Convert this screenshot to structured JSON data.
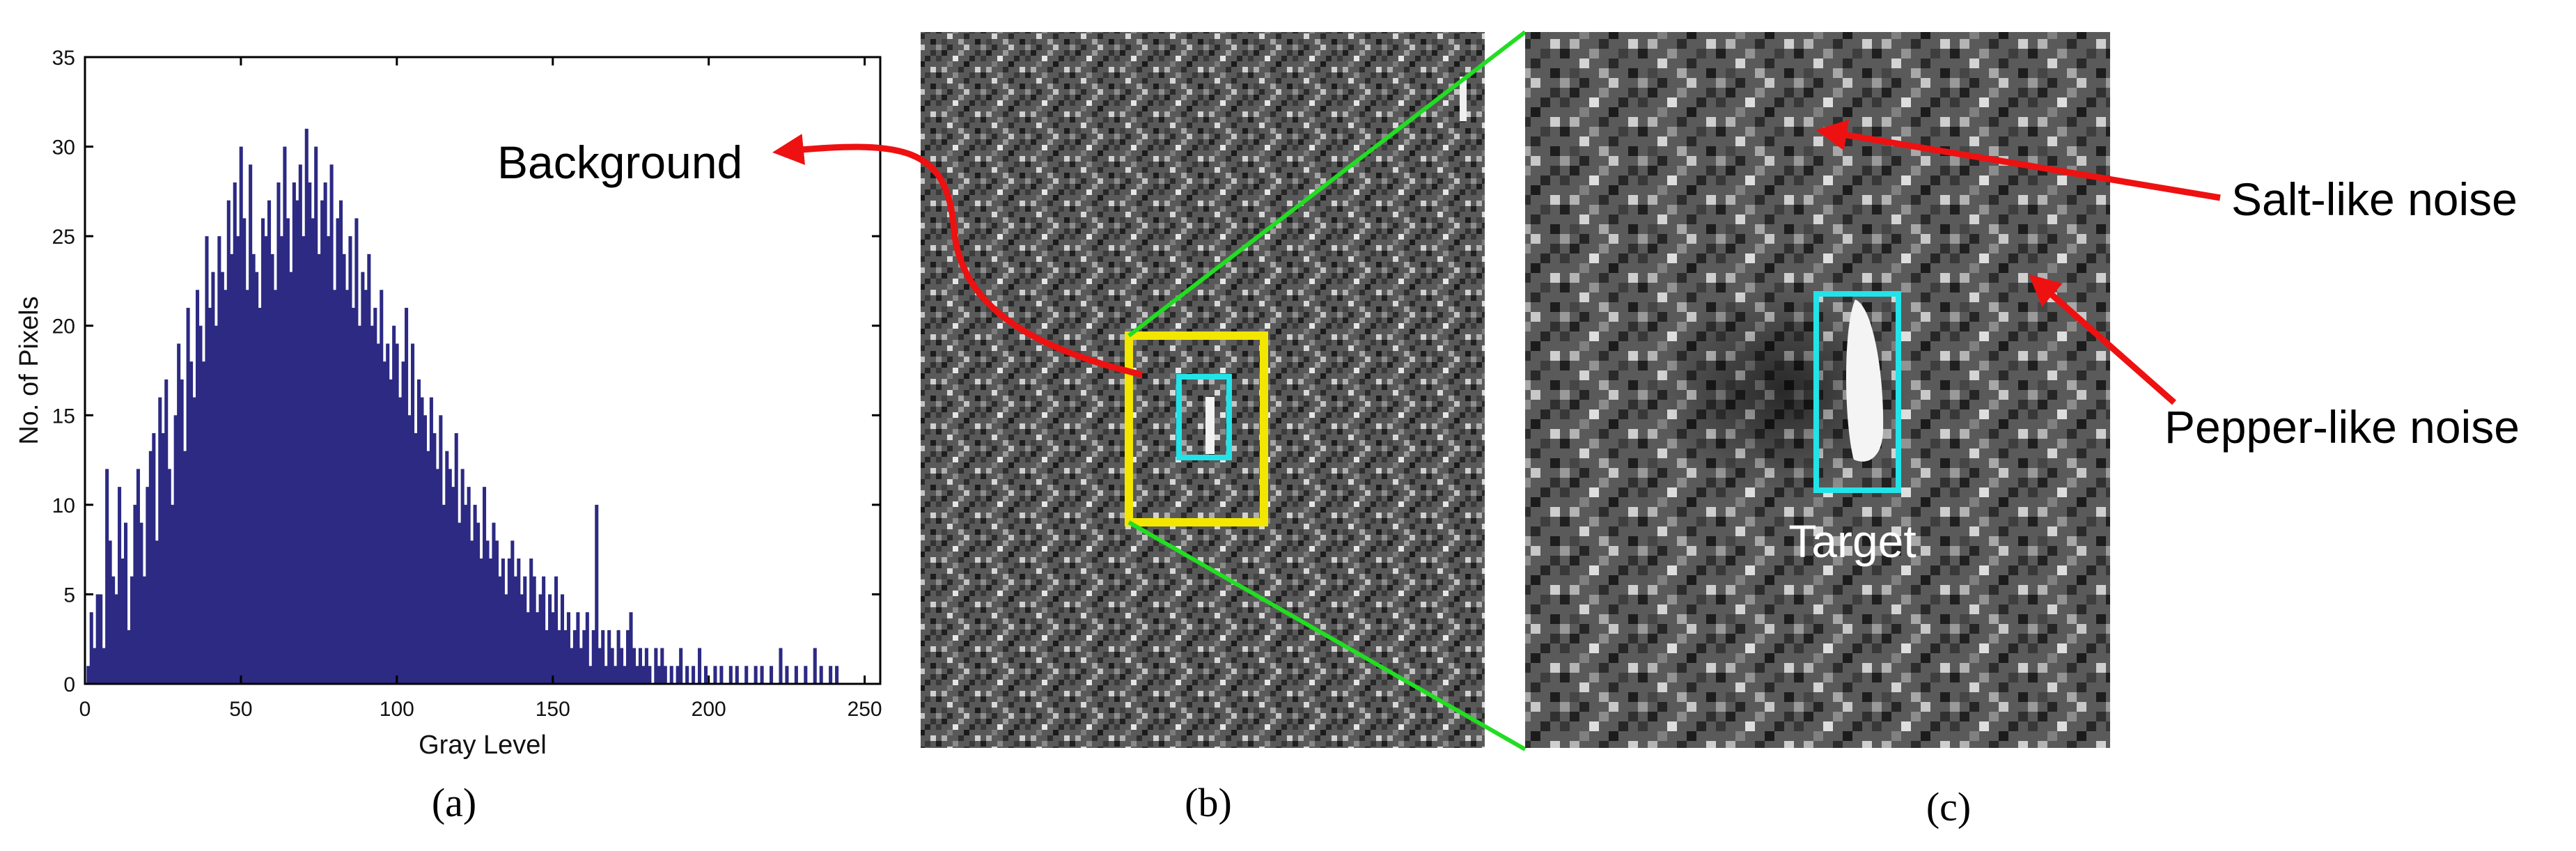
{
  "captions": {
    "a": "(a)",
    "b": "(b)",
    "c": "(c)"
  },
  "annotations": {
    "background": "Background",
    "salt_noise": "Salt-like noise",
    "pepper_noise": "Pepper-like noise",
    "target": "Target"
  },
  "colors": {
    "bar": "#2c2a83",
    "arrow": "#ee1111",
    "zoom_lines": "#22dd22",
    "roi_box": "#f3e600",
    "target_box": "#22e3e8"
  },
  "chart_data": {
    "type": "bar",
    "xlabel": "Gray Level",
    "ylabel": "No. of Pixels",
    "xlim": [
      0,
      255
    ],
    "ylim": [
      0,
      35
    ],
    "xticks": [
      0,
      50,
      100,
      150,
      200,
      250
    ],
    "yticks": [
      0,
      5,
      10,
      15,
      20,
      25,
      30,
      35
    ],
    "grid": false,
    "x_start": 0,
    "values": [
      0,
      1,
      4,
      2,
      5,
      5,
      2,
      12,
      8,
      6,
      5,
      11,
      7,
      9,
      3,
      6,
      10,
      12,
      9,
      6,
      11,
      13,
      14,
      8,
      16,
      14,
      17,
      12,
      10,
      15,
      19,
      17,
      13,
      21,
      18,
      16,
      22,
      20,
      18,
      25,
      21,
      23,
      20,
      25,
      23,
      22,
      27,
      24,
      28,
      25,
      30,
      26,
      22,
      29,
      24,
      23,
      21,
      26,
      25,
      27,
      24,
      22,
      28,
      25,
      30,
      26,
      23,
      28,
      27,
      29,
      25,
      31,
      28,
      26,
      30,
      24,
      27,
      28,
      25,
      29,
      22,
      26,
      27,
      24,
      22,
      25,
      21,
      26,
      20,
      23,
      22,
      24,
      20,
      21,
      19,
      22,
      18,
      19,
      17,
      20,
      19,
      16,
      18,
      21,
      15,
      19,
      14,
      17,
      16,
      15,
      13,
      16,
      14,
      12,
      15,
      10,
      13,
      12,
      11,
      14,
      9,
      12,
      10,
      11,
      8,
      10,
      9,
      7,
      11,
      8,
      7,
      9,
      8,
      6,
      7,
      5,
      7,
      8,
      6,
      7,
      5,
      6,
      4,
      7,
      6,
      4,
      5,
      6,
      3,
      5,
      4,
      6,
      3,
      5,
      3,
      4,
      2,
      3,
      4,
      2,
      3,
      4,
      1,
      3,
      10,
      2,
      3,
      1,
      3,
      2,
      1,
      3,
      2,
      1,
      3,
      4,
      2,
      1,
      2,
      1,
      2,
      1,
      0,
      2,
      1,
      2,
      1,
      0,
      1,
      0,
      1,
      2,
      0,
      1,
      0,
      1,
      0,
      2,
      0,
      1,
      0,
      0,
      1,
      0,
      1,
      0,
      0,
      1,
      0,
      1,
      0,
      0,
      1,
      0,
      0,
      1,
      0,
      1,
      0,
      0,
      1,
      0,
      0,
      2,
      0,
      1,
      0,
      0,
      1,
      0,
      0,
      1,
      0,
      0,
      2,
      0,
      1,
      0,
      0,
      1,
      0,
      1
    ]
  }
}
